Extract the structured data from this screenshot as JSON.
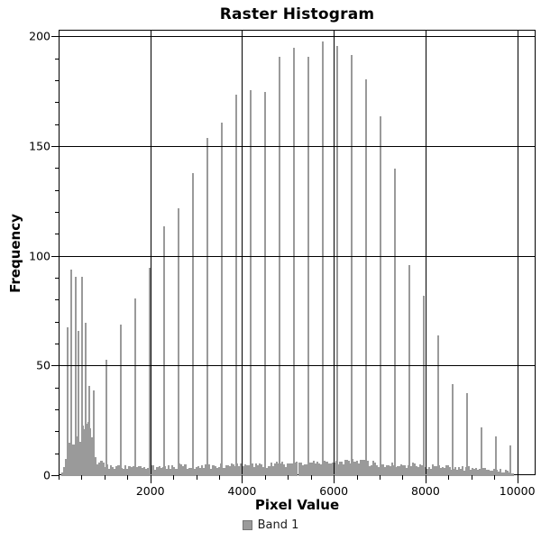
{
  "chart_data": {
    "type": "bar",
    "title": "Raster Histogram",
    "xlabel": "Pixel Value",
    "ylabel": "Frequency",
    "legend": [
      {
        "label": "Band 1",
        "color": "#9a9a9a"
      }
    ],
    "bar_color": "#9a9a9a",
    "grid_color": "#000000",
    "xlim": [
      0,
      10400
    ],
    "ylim": [
      0,
      203
    ],
    "x_ticks": [
      {
        "v": 2000,
        "label": "2000"
      },
      {
        "v": 4000,
        "label": "4000"
      },
      {
        "v": 6000,
        "label": "6000"
      },
      {
        "v": 8000,
        "label": "8000"
      },
      {
        "v": 10000,
        "label": "10000"
      }
    ],
    "x_minor_step": 500,
    "x_minor_max": 10000,
    "y_ticks": [
      {
        "v": 0,
        "label": "0"
      },
      {
        "v": 50,
        "label": "50"
      },
      {
        "v": 100,
        "label": "100"
      },
      {
        "v": 150,
        "label": "150"
      },
      {
        "v": 200,
        "label": "200"
      }
    ],
    "y_minor_step": 10,
    "y_minor_max": 200,
    "grid_x_values": [
      2000,
      4000,
      6000,
      8000,
      10000
    ],
    "grid_y_values": [
      50,
      100,
      150,
      200
    ],
    "bin_count": 256,
    "spikes": [
      [
        170,
        68
      ],
      [
        254,
        94
      ],
      [
        346,
        91
      ],
      [
        411,
        66
      ],
      [
        497,
        91
      ],
      [
        576,
        70
      ],
      [
        640,
        41
      ],
      [
        740,
        39
      ],
      [
        1016,
        53
      ],
      [
        1331,
        69
      ],
      [
        1646,
        81
      ],
      [
        1961,
        95
      ],
      [
        2276,
        114
      ],
      [
        2591,
        122
      ],
      [
        2906,
        138
      ],
      [
        3221,
        154
      ],
      [
        3536,
        161
      ],
      [
        3851,
        174
      ],
      [
        4166,
        176
      ],
      [
        4481,
        175
      ],
      [
        4796,
        191
      ],
      [
        5111,
        195
      ],
      [
        5426,
        191
      ],
      [
        5741,
        198
      ],
      [
        6056,
        196
      ],
      [
        6371,
        192
      ],
      [
        6686,
        181
      ],
      [
        7001,
        164
      ],
      [
        7316,
        140
      ],
      [
        7631,
        96
      ],
      [
        7946,
        82
      ],
      [
        8261,
        64
      ],
      [
        8576,
        42
      ],
      [
        8891,
        38
      ],
      [
        9206,
        22
      ],
      [
        9521,
        18
      ],
      [
        9836,
        14
      ]
    ],
    "noise_floor_profile": [
      [
        40,
        0
      ],
      [
        60,
        2
      ],
      [
        90,
        6
      ],
      [
        120,
        3
      ],
      [
        160,
        10
      ],
      [
        200,
        15
      ],
      [
        260,
        17
      ],
      [
        320,
        18
      ],
      [
        380,
        16
      ],
      [
        440,
        17
      ],
      [
        500,
        19
      ],
      [
        560,
        21
      ],
      [
        620,
        24
      ],
      [
        680,
        24
      ],
      [
        720,
        14
      ],
      [
        760,
        9
      ],
      [
        820,
        7
      ],
      [
        900,
        6
      ],
      [
        1000,
        5
      ],
      [
        1200,
        4
      ],
      [
        1600,
        4
      ],
      [
        2000,
        4
      ],
      [
        2400,
        4.2
      ],
      [
        2800,
        4.4
      ],
      [
        3200,
        4.6
      ],
      [
        3600,
        4.8
      ],
      [
        4000,
        5
      ],
      [
        4400,
        5
      ],
      [
        4800,
        5.2
      ],
      [
        5200,
        5.4
      ],
      [
        5600,
        5.5
      ],
      [
        6000,
        6
      ],
      [
        6250,
        7
      ],
      [
        6500,
        6.5
      ],
      [
        6750,
        6
      ],
      [
        7000,
        5.5
      ],
      [
        7400,
        5
      ],
      [
        7800,
        4.6
      ],
      [
        8200,
        4.2
      ],
      [
        8600,
        4
      ],
      [
        9000,
        3.2
      ],
      [
        9300,
        2.8
      ],
      [
        9600,
        2.5
      ],
      [
        9820,
        2
      ],
      [
        9880,
        1
      ],
      [
        9920,
        0
      ],
      [
        10400,
        0
      ]
    ]
  }
}
